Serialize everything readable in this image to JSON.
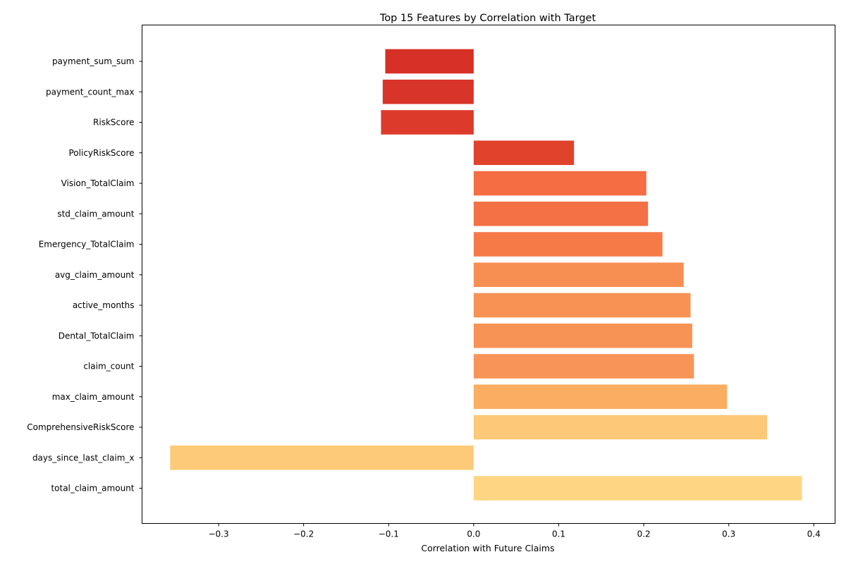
{
  "chart_data": {
    "type": "bar",
    "orientation": "horizontal",
    "title": "Top 15 Features by Correlation with Target",
    "xlabel": "Correlation with Future Claims",
    "ylabel": "",
    "xlim": [
      -0.39,
      0.425
    ],
    "xticks": [
      -0.3,
      -0.2,
      -0.1,
      0.0,
      0.1,
      0.2,
      0.3,
      0.4
    ],
    "xtick_labels": [
      "−0.3",
      "−0.2",
      "−0.1",
      "0.0",
      "0.1",
      "0.2",
      "0.3",
      "0.4"
    ],
    "grid": false,
    "legend": "none",
    "categories": [
      "payment_sum_sum",
      "payment_count_max",
      "RiskScore",
      "PolicyRiskScore",
      "Vision_TotalClaim",
      "std_claim_amount",
      "Emergency_TotalClaim",
      "avg_claim_amount",
      "active_months",
      "Dental_TotalClaim",
      "claim_count",
      "max_claim_amount",
      "ComprehensiveRiskScore",
      "days_since_last_claim_x",
      "total_claim_amount"
    ],
    "values": [
      -0.104,
      -0.107,
      -0.109,
      0.118,
      0.203,
      0.205,
      0.222,
      0.247,
      0.255,
      0.257,
      0.259,
      0.298,
      0.345,
      -0.357,
      0.386
    ],
    "colors": [
      "#d73027",
      "#d93429",
      "#dc3a2b",
      "#e0422c",
      "#f46d43",
      "#f47045",
      "#f57a48",
      "#f88f52",
      "#f89254",
      "#f89356",
      "#f89457",
      "#fbae61",
      "#fdc877",
      "#fdca79",
      "#fed683"
    ]
  }
}
